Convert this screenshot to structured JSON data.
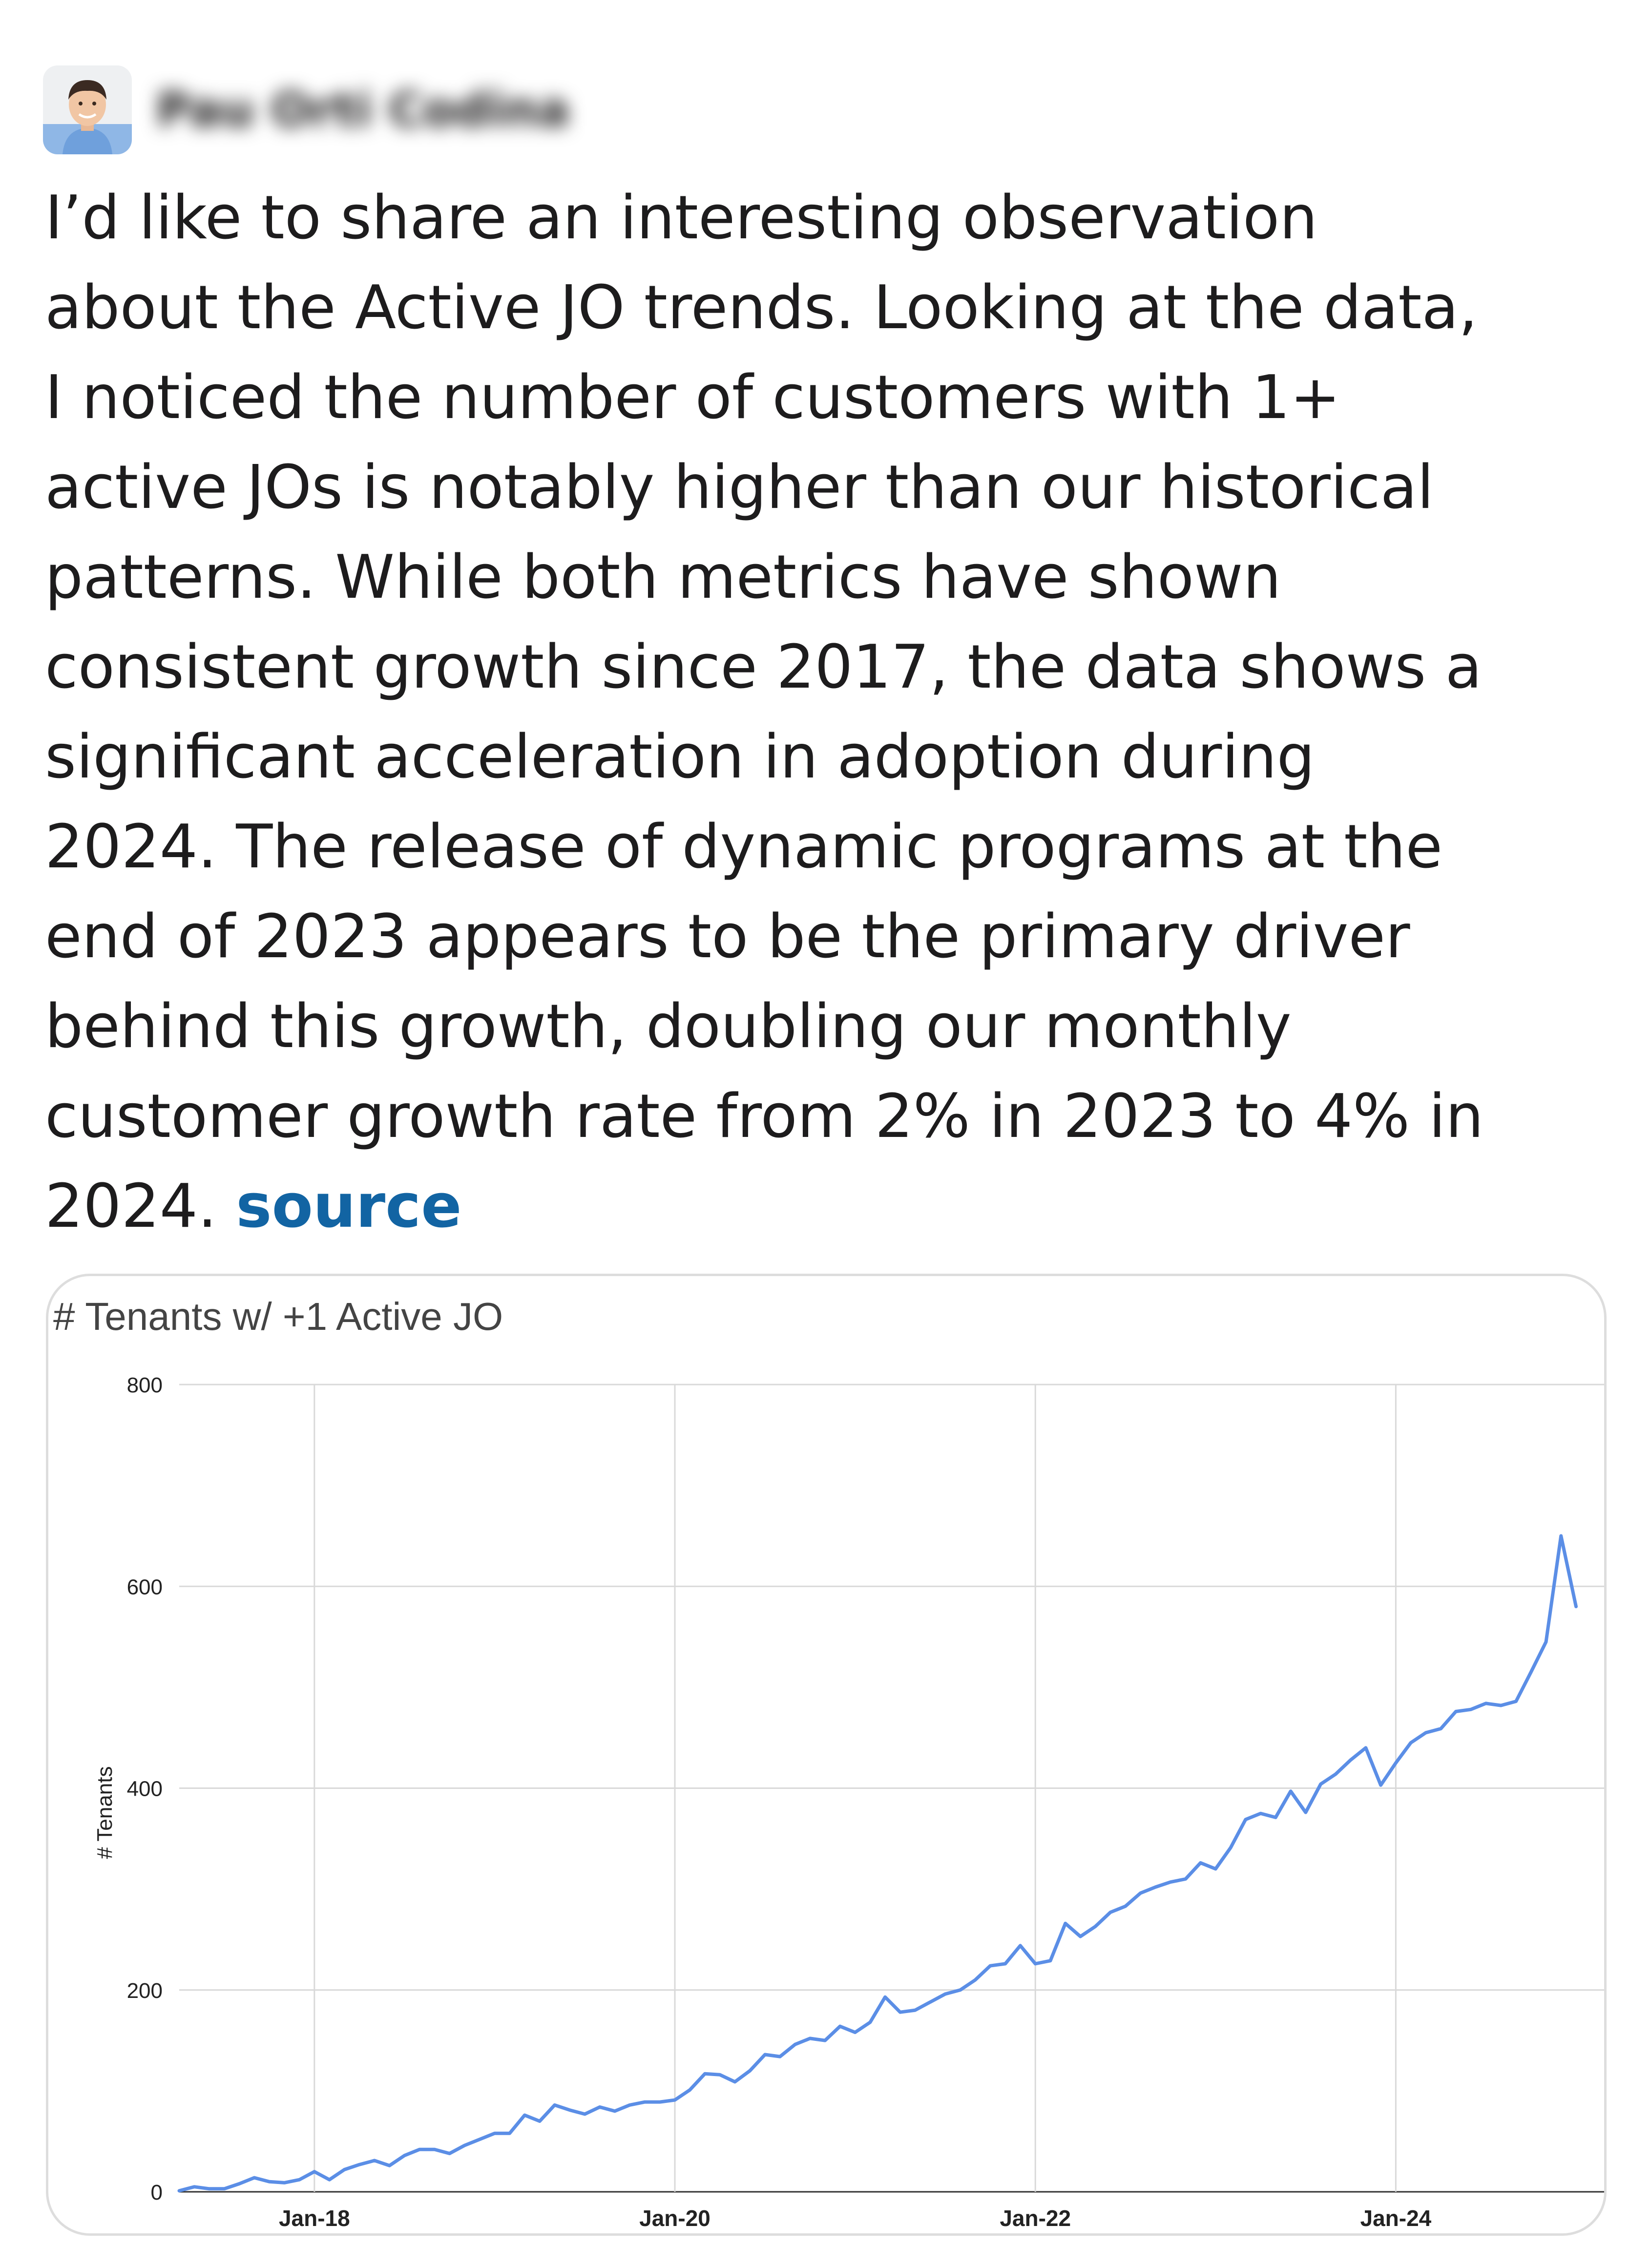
{
  "message": {
    "lines": [
      "I’d like to share an interesting observation",
      "about the Active JO trends. Looking at the data,",
      "I noticed the number of customers with 1+",
      "active JOs is notably higher than our historical",
      "patterns. While both metrics have shown",
      "consistent growth since 2017, the data shows a",
      "significant acceleration in adoption during",
      "2024. The release of dynamic programs at the",
      "end of 2023 appears to be the primary driver",
      "behind this growth, doubling our monthly",
      "customer growth rate from 2% in 2023 to 4% in"
    ],
    "last_line_text": "2024. ",
    "source_link": "source"
  },
  "colors": {
    "link": "#1264a3",
    "series": "#5b8ee6",
    "grid": "#d9d9d9"
  },
  "chart_data": {
    "type": "line",
    "title": "# Tenants w/ +1 Active JO",
    "xlabel": "",
    "ylabel": "# Tenants",
    "ylim": [
      0,
      800
    ],
    "yticks": [
      0,
      200,
      400,
      600,
      800
    ],
    "xlim": [
      "2017-04",
      "2025-03"
    ],
    "xticks": [
      {
        "date": "2018-01",
        "label": "Jan-18"
      },
      {
        "date": "2020-01",
        "label": "Jan-20"
      },
      {
        "date": "2022-01",
        "label": "Jan-22"
      },
      {
        "date": "2024-01",
        "label": "Jan-24"
      }
    ],
    "grid": true,
    "series": [
      {
        "name": "",
        "points": [
          [
            "2017-04",
            1
          ],
          [
            "2017-05",
            5
          ],
          [
            "2017-06",
            3
          ],
          [
            "2017-07",
            3
          ],
          [
            "2017-08",
            8
          ],
          [
            "2017-09",
            14
          ],
          [
            "2017-10",
            10
          ],
          [
            "2017-11",
            9
          ],
          [
            "2017-12",
            12
          ],
          [
            "2018-01",
            20
          ],
          [
            "2018-02",
            12
          ],
          [
            "2018-03",
            22
          ],
          [
            "2018-04",
            27
          ],
          [
            "2018-05",
            31
          ],
          [
            "2018-06",
            26
          ],
          [
            "2018-07",
            36
          ],
          [
            "2018-08",
            42
          ],
          [
            "2018-09",
            42
          ],
          [
            "2018-10",
            38
          ],
          [
            "2018-11",
            46
          ],
          [
            "2018-12",
            52
          ],
          [
            "2019-01",
            58
          ],
          [
            "2019-02",
            58
          ],
          [
            "2019-03",
            76
          ],
          [
            "2019-04",
            70
          ],
          [
            "2019-05",
            86
          ],
          [
            "2019-06",
            81
          ],
          [
            "2019-07",
            77
          ],
          [
            "2019-08",
            84
          ],
          [
            "2019-09",
            80
          ],
          [
            "2019-10",
            86
          ],
          [
            "2019-11",
            89
          ],
          [
            "2019-12",
            89
          ],
          [
            "2020-01",
            91
          ],
          [
            "2020-02",
            101
          ],
          [
            "2020-03",
            117
          ],
          [
            "2020-04",
            116
          ],
          [
            "2020-05",
            109
          ],
          [
            "2020-06",
            120
          ],
          [
            "2020-07",
            136
          ],
          [
            "2020-08",
            134
          ],
          [
            "2020-09",
            146
          ],
          [
            "2020-10",
            152
          ],
          [
            "2020-11",
            150
          ],
          [
            "2020-12",
            164
          ],
          [
            "2021-01",
            158
          ],
          [
            "2021-02",
            168
          ],
          [
            "2021-03",
            193
          ],
          [
            "2021-04",
            178
          ],
          [
            "2021-05",
            180
          ],
          [
            "2021-06",
            188
          ],
          [
            "2021-07",
            196
          ],
          [
            "2021-08",
            200
          ],
          [
            "2021-09",
            210
          ],
          [
            "2021-10",
            224
          ],
          [
            "2021-11",
            226
          ],
          [
            "2021-12",
            244
          ],
          [
            "2022-01",
            226
          ],
          [
            "2022-02",
            229
          ],
          [
            "2022-03",
            266
          ],
          [
            "2022-04",
            253
          ],
          [
            "2022-05",
            263
          ],
          [
            "2022-06",
            277
          ],
          [
            "2022-07",
            283
          ],
          [
            "2022-08",
            296
          ],
          [
            "2022-09",
            302
          ],
          [
            "2022-10",
            307
          ],
          [
            "2022-11",
            310
          ],
          [
            "2022-12",
            326
          ],
          [
            "2023-01",
            320
          ],
          [
            "2023-02",
            341
          ],
          [
            "2023-03",
            369
          ],
          [
            "2023-04",
            375
          ],
          [
            "2023-05",
            371
          ],
          [
            "2023-06",
            397
          ],
          [
            "2023-07",
            376
          ],
          [
            "2023-08",
            404
          ],
          [
            "2023-09",
            414
          ],
          [
            "2023-10",
            428
          ],
          [
            "2023-11",
            440
          ],
          [
            "2023-12",
            403
          ],
          [
            "2024-01",
            425
          ],
          [
            "2024-02",
            445
          ],
          [
            "2024-03",
            455
          ],
          [
            "2024-04",
            459
          ],
          [
            "2024-05",
            476
          ],
          [
            "2024-06",
            478
          ],
          [
            "2024-07",
            484
          ],
          [
            "2024-08",
            482
          ],
          [
            "2024-09",
            486
          ],
          [
            "2024-10",
            515
          ],
          [
            "2024-11",
            545
          ],
          [
            "2024-12",
            650
          ],
          [
            "2025-01",
            580
          ]
        ]
      }
    ]
  }
}
